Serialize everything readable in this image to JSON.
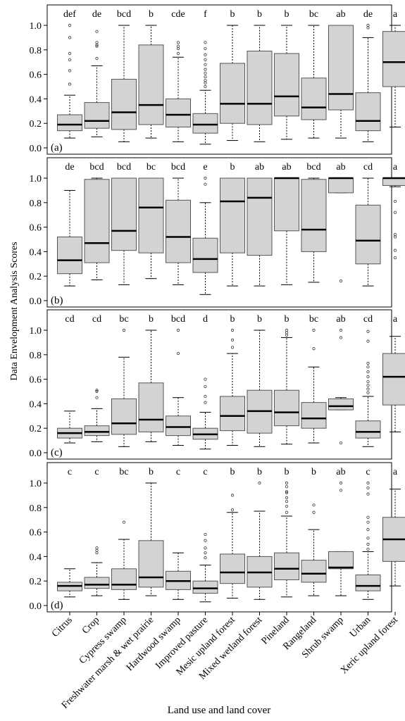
{
  "chart_data": {
    "type": "box",
    "ylabel": "Data Envelopment Analysis Scores",
    "xlabel": "Land use and land cover",
    "ylim": [
      0,
      1.05
    ],
    "yticks": [
      0.0,
      0.2,
      0.4,
      0.6,
      0.8,
      1.0
    ],
    "ytick_labels": [
      "0.0",
      "0.2",
      "0.4",
      "0.6",
      "0.8",
      "1.0"
    ],
    "grid": false,
    "box_color": "#d3d3d3",
    "categories": [
      "Citrus",
      "Crop",
      "Cypress swamp",
      "Freshwater marsh & wet prairie",
      "Hardwood swamp",
      "Improved pasture",
      "Mesic upland forest",
      "Mixed wetland forest",
      "Pineland",
      "Rangeland",
      "Shrub swamp",
      "Urban",
      "Xeric upland forest"
    ],
    "panels": [
      {
        "label": "(a)",
        "letters": [
          "def",
          "de",
          "bcd",
          "b",
          "cde",
          "f",
          "b",
          "b",
          "b",
          "bc",
          "ab",
          "de",
          "a"
        ],
        "boxes": [
          {
            "whislo": 0.08,
            "q1": 0.14,
            "med": 0.19,
            "q3": 0.27,
            "whishi": 0.43,
            "fliers": [
              0.52,
              0.63,
              0.72,
              0.77,
              0.9,
              1.0
            ]
          },
          {
            "whislo": 0.09,
            "q1": 0.16,
            "med": 0.22,
            "q3": 0.37,
            "whishi": 0.67,
            "fliers": [
              0.73,
              0.83,
              0.84,
              0.86,
              0.95
            ]
          },
          {
            "whislo": 0.05,
            "q1": 0.15,
            "med": 0.29,
            "q3": 0.56,
            "whishi": 1.0,
            "fliers": []
          },
          {
            "whislo": 0.08,
            "q1": 0.19,
            "med": 0.35,
            "q3": 0.84,
            "whishi": 1.0,
            "fliers": []
          },
          {
            "whislo": 0.05,
            "q1": 0.17,
            "med": 0.27,
            "q3": 0.4,
            "whishi": 0.74,
            "fliers": [
              0.77,
              0.81,
              0.83,
              0.86
            ]
          },
          {
            "whislo": 0.03,
            "q1": 0.12,
            "med": 0.19,
            "q3": 0.28,
            "whishi": 0.47,
            "fliers": [
              0.5,
              0.53,
              0.55,
              0.58,
              0.61,
              0.64,
              0.68,
              0.72,
              0.76,
              0.81,
              0.86
            ]
          },
          {
            "whislo": 0.06,
            "q1": 0.2,
            "med": 0.36,
            "q3": 0.69,
            "whishi": 1.0,
            "fliers": []
          },
          {
            "whislo": 0.05,
            "q1": 0.19,
            "med": 0.36,
            "q3": 0.79,
            "whishi": 1.0,
            "fliers": []
          },
          {
            "whislo": 0.07,
            "q1": 0.26,
            "med": 0.42,
            "q3": 0.77,
            "whishi": 1.0,
            "fliers": []
          },
          {
            "whislo": 0.08,
            "q1": 0.23,
            "med": 0.33,
            "q3": 0.57,
            "whishi": 1.0,
            "fliers": []
          },
          {
            "whislo": 0.08,
            "q1": 0.31,
            "med": 0.44,
            "q3": 1.0,
            "whishi": 1.0,
            "fliers": []
          },
          {
            "whislo": 0.05,
            "q1": 0.14,
            "med": 0.22,
            "q3": 0.45,
            "whishi": 0.9,
            "fliers": [
              0.98,
              1.0
            ]
          },
          {
            "whislo": 0.17,
            "q1": 0.5,
            "med": 0.7,
            "q3": 0.95,
            "whishi": 1.0,
            "fliers": []
          }
        ]
      },
      {
        "label": "(b)",
        "letters": [
          "de",
          "bcd",
          "bcd",
          "bc",
          "bcd",
          "e",
          "b",
          "ab",
          "ab",
          "bcd",
          "ab",
          "cd",
          "a"
        ],
        "boxes": [
          {
            "whislo": 0.12,
            "q1": 0.22,
            "med": 0.33,
            "q3": 0.52,
            "whishi": 0.9,
            "fliers": []
          },
          {
            "whislo": 0.17,
            "q1": 0.31,
            "med": 0.47,
            "q3": 0.99,
            "whishi": 1.0,
            "fliers": []
          },
          {
            "whislo": 0.13,
            "q1": 0.41,
            "med": 0.57,
            "q3": 1.0,
            "whishi": 1.0,
            "fliers": []
          },
          {
            "whislo": 0.18,
            "q1": 0.39,
            "med": 0.76,
            "q3": 1.0,
            "whishi": 1.0,
            "fliers": []
          },
          {
            "whislo": 0.13,
            "q1": 0.31,
            "med": 0.52,
            "q3": 0.82,
            "whishi": 1.0,
            "fliers": []
          },
          {
            "whislo": 0.05,
            "q1": 0.23,
            "med": 0.34,
            "q3": 0.51,
            "whishi": 0.8,
            "fliers": [
              0.95,
              1.0
            ]
          },
          {
            "whislo": 0.12,
            "q1": 0.39,
            "med": 0.81,
            "q3": 1.0,
            "whishi": 1.0,
            "fliers": []
          },
          {
            "whislo": 0.12,
            "q1": 0.37,
            "med": 0.84,
            "q3": 1.0,
            "whishi": 1.0,
            "fliers": []
          },
          {
            "whislo": 0.13,
            "q1": 0.57,
            "med": 1.0,
            "q3": 1.0,
            "whishi": 1.0,
            "fliers": []
          },
          {
            "whislo": 0.15,
            "q1": 0.4,
            "med": 0.58,
            "q3": 0.99,
            "whishi": 1.0,
            "fliers": []
          },
          {
            "whislo": 0.88,
            "q1": 0.88,
            "med": 1.0,
            "q3": 1.0,
            "whishi": 1.0,
            "fliers": [
              0.16
            ]
          },
          {
            "whislo": 0.12,
            "q1": 0.3,
            "med": 0.49,
            "q3": 0.78,
            "whishi": 1.0,
            "fliers": []
          },
          {
            "whislo": 0.93,
            "q1": 0.94,
            "med": 1.0,
            "q3": 1.0,
            "whishi": 1.0,
            "fliers": [
              0.35,
              0.41,
              0.52,
              0.54,
              0.72,
              0.81
            ]
          }
        ]
      },
      {
        "label": "(c)",
        "letters": [
          "cd",
          "cd",
          "bc",
          "b",
          "bcd",
          "d",
          "b",
          "b",
          "b",
          "bc",
          "ab",
          "cd",
          "a"
        ],
        "boxes": [
          {
            "whislo": 0.08,
            "q1": 0.12,
            "med": 0.16,
            "q3": 0.2,
            "whishi": 0.34,
            "fliers": []
          },
          {
            "whislo": 0.09,
            "q1": 0.14,
            "med": 0.17,
            "q3": 0.22,
            "whishi": 0.36,
            "fliers": [
              0.45,
              0.5,
              0.51
            ]
          },
          {
            "whislo": 0.05,
            "q1": 0.15,
            "med": 0.24,
            "q3": 0.44,
            "whishi": 0.78,
            "fliers": [
              1.0
            ]
          },
          {
            "whislo": 0.09,
            "q1": 0.17,
            "med": 0.27,
            "q3": 0.57,
            "whishi": 1.0,
            "fliers": []
          },
          {
            "whislo": 0.06,
            "q1": 0.14,
            "med": 0.21,
            "q3": 0.3,
            "whishi": 0.45,
            "fliers": [
              0.81,
              1.0
            ]
          },
          {
            "whislo": 0.03,
            "q1": 0.11,
            "med": 0.15,
            "q3": 0.2,
            "whishi": 0.33,
            "fliers": [
              0.41,
              0.46,
              0.54,
              0.6
            ]
          },
          {
            "whislo": 0.06,
            "q1": 0.18,
            "med": 0.3,
            "q3": 0.46,
            "whishi": 0.81,
            "fliers": [
              0.86,
              0.92,
              1.0
            ]
          },
          {
            "whislo": 0.05,
            "q1": 0.16,
            "med": 0.34,
            "q3": 0.51,
            "whishi": 1.0,
            "fliers": []
          },
          {
            "whislo": 0.07,
            "q1": 0.22,
            "med": 0.33,
            "q3": 0.51,
            "whishi": 0.94,
            "fliers": [
              0.96,
              0.98,
              1.0
            ]
          },
          {
            "whislo": 0.08,
            "q1": 0.2,
            "med": 0.28,
            "q3": 0.41,
            "whishi": 0.7,
            "fliers": [
              0.85,
              1.0
            ]
          },
          {
            "whislo": 0.35,
            "q1": 0.35,
            "med": 0.38,
            "q3": 0.44,
            "whishi": 0.45,
            "fliers": [
              0.08,
              0.94,
              1.0
            ]
          },
          {
            "whislo": 0.05,
            "q1": 0.12,
            "med": 0.17,
            "q3": 0.26,
            "whishi": 0.46,
            "fliers": [
              0.49,
              0.52,
              0.55,
              0.58,
              0.62,
              0.66,
              0.7,
              0.73,
              0.91,
              0.99
            ]
          },
          {
            "whislo": 0.17,
            "q1": 0.39,
            "med": 0.62,
            "q3": 0.81,
            "whishi": 0.95,
            "fliers": []
          }
        ]
      },
      {
        "label": "(d)",
        "letters": [
          "c",
          "c",
          "bc",
          "b",
          "c",
          "c",
          "b",
          "b",
          "b",
          "b",
          "ab",
          "c",
          "a"
        ],
        "boxes": [
          {
            "whislo": 0.07,
            "q1": 0.12,
            "med": 0.16,
            "q3": 0.19,
            "whishi": 0.3,
            "fliers": []
          },
          {
            "whislo": 0.08,
            "q1": 0.14,
            "med": 0.17,
            "q3": 0.23,
            "whishi": 0.35,
            "fliers": [
              0.43,
              0.45,
              0.47
            ]
          },
          {
            "whislo": 0.05,
            "q1": 0.13,
            "med": 0.17,
            "q3": 0.3,
            "whishi": 0.54,
            "fliers": [
              0.68
            ]
          },
          {
            "whislo": 0.08,
            "q1": 0.15,
            "med": 0.23,
            "q3": 0.53,
            "whishi": 1.0,
            "fliers": []
          },
          {
            "whislo": 0.05,
            "q1": 0.13,
            "med": 0.2,
            "q3": 0.28,
            "whishi": 0.43,
            "fliers": []
          },
          {
            "whislo": 0.03,
            "q1": 0.1,
            "med": 0.14,
            "q3": 0.2,
            "whishi": 0.33,
            "fliers": [
              0.39,
              0.43,
              0.47,
              0.53,
              0.58
            ]
          },
          {
            "whislo": 0.06,
            "q1": 0.18,
            "med": 0.27,
            "q3": 0.42,
            "whishi": 0.76,
            "fliers": [
              0.78,
              0.9
            ]
          },
          {
            "whislo": 0.05,
            "q1": 0.15,
            "med": 0.27,
            "q3": 0.4,
            "whishi": 0.77,
            "fliers": [
              1.0
            ]
          },
          {
            "whislo": 0.07,
            "q1": 0.21,
            "med": 0.3,
            "q3": 0.43,
            "whishi": 0.73,
            "fliers": [
              0.76,
              0.81,
              0.85,
              0.88,
              0.92,
              0.93,
              0.97,
              1.0
            ]
          },
          {
            "whislo": 0.08,
            "q1": 0.19,
            "med": 0.26,
            "q3": 0.37,
            "whishi": 0.62,
            "fliers": [
              0.76,
              0.82
            ]
          },
          {
            "whislo": 0.08,
            "q1": 0.3,
            "med": 0.31,
            "q3": 0.44,
            "whishi": 0.44,
            "fliers": [
              0.94,
              1.0
            ]
          },
          {
            "whislo": 0.05,
            "q1": 0.12,
            "med": 0.16,
            "q3": 0.25,
            "whishi": 0.44,
            "fliers": [
              0.46,
              0.5,
              0.55,
              0.62,
              0.68,
              0.72,
              0.91,
              0.96,
              1.0
            ]
          },
          {
            "whislo": 0.16,
            "q1": 0.36,
            "med": 0.54,
            "q3": 0.72,
            "whishi": 0.95,
            "fliers": []
          }
        ]
      }
    ]
  }
}
